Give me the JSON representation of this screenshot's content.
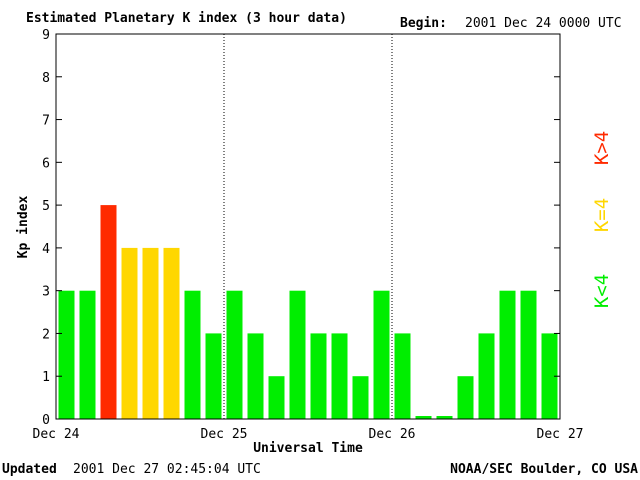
{
  "header": {
    "title": "Estimated Planetary K index (3 hour data)",
    "begin_label": "Begin:",
    "begin_value": "2001 Dec 24 0000 UTC"
  },
  "footer": {
    "updated_label": "Updated",
    "updated_value": "2001 Dec 27 02:45:04 UTC",
    "source": "NOAA/SEC Boulder, CO USA"
  },
  "legend": [
    {
      "label": "K>4",
      "color": "#ff2a00"
    },
    {
      "label": "K=4",
      "color": "#ffd700"
    },
    {
      "label": "K<4",
      "color": "#00ee00"
    }
  ],
  "chart_data": {
    "type": "bar",
    "title": "Estimated Planetary K index (3 hour data)",
    "xlabel": "Universal Time",
    "ylabel": "Kp index",
    "ylim": [
      0,
      9
    ],
    "yticks": [
      "0",
      "1",
      "2",
      "3",
      "4",
      "5",
      "6",
      "7",
      "8",
      "9"
    ],
    "xticks": [
      "Dec 24",
      "Dec 25",
      "Dec 26",
      "Dec 27"
    ],
    "bins_per_day": 8,
    "values": [
      3,
      3,
      5,
      4,
      4,
      4,
      3,
      2,
      3,
      2,
      1,
      3,
      2,
      2,
      1,
      3,
      2,
      0,
      0,
      1,
      2,
      3,
      3,
      2
    ],
    "colors": {
      "low": "#00ee00",
      "four": "#ffd700",
      "high": "#ff2a00"
    },
    "grid": "dotted vertical lines at day boundaries",
    "legend_position": "right"
  }
}
